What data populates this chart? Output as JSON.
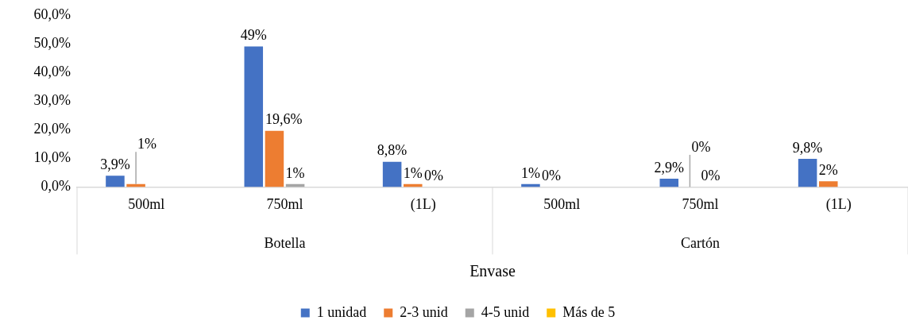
{
  "chart_data": {
    "type": "bar",
    "xlabel": "Envase",
    "categories": [
      "500ml",
      "750ml",
      "(1L)",
      "500ml",
      "750ml",
      "(1L)"
    ],
    "annotations": [
      "Botella",
      "Cartón"
    ],
    "series": [
      {
        "name": "1 unidad",
        "color": "#4472c4",
        "values": [
          3.9,
          49,
          8.8,
          1,
          2.9,
          9.8
        ],
        "value_labels": [
          "3,9%",
          "49%",
          "8,8%",
          "1%",
          "2,9%",
          "9,8%"
        ]
      },
      {
        "name": "2-3 unid",
        "color": "#ed7d31",
        "values": [
          1,
          19.6,
          1,
          0,
          0,
          2
        ],
        "value_labels": [
          "1%",
          "19,6%",
          "1%",
          "0%",
          "0%",
          "2%"
        ]
      },
      {
        "name": "4-5 unid",
        "color": "#a5a5a5",
        "values": [
          null,
          1,
          0,
          null,
          0,
          null
        ],
        "value_labels": [
          null,
          "1%",
          "0%",
          null,
          "0%",
          null
        ]
      },
      {
        "name": "Más de 5",
        "color": "#ffc000",
        "values": [
          null,
          null,
          null,
          null,
          null,
          null
        ]
      }
    ],
    "ylim": [
      0,
      60
    ],
    "yticks": [
      {
        "value": 0,
        "label": "0,0%"
      },
      {
        "value": 10,
        "label": "10,0%"
      },
      {
        "value": 20,
        "label": "20,0%"
      },
      {
        "value": 30,
        "label": "30,0%"
      },
      {
        "value": 40,
        "label": "40,0%"
      },
      {
        "value": 50,
        "label": "50,0%"
      },
      {
        "value": 60,
        "label": "60,0%"
      }
    ],
    "grid": false,
    "legend": "bottom"
  }
}
